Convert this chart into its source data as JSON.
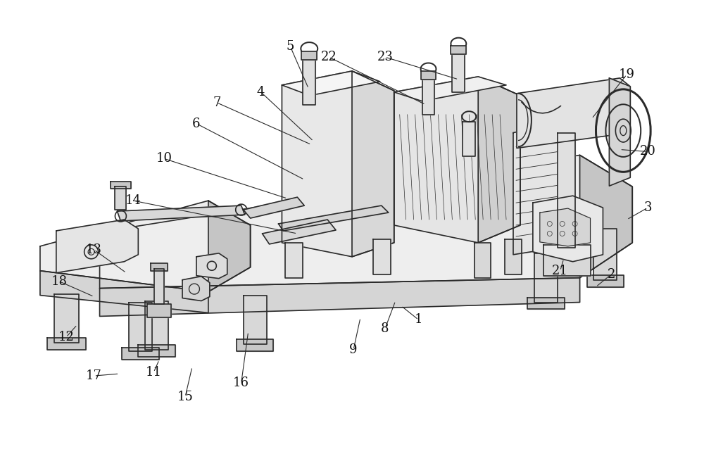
{
  "bg_color": "#ffffff",
  "line_color": "#2a2a2a",
  "line_width": 1.2,
  "fig_width": 10.0,
  "fig_height": 6.38,
  "label_font_size": 13,
  "label_positions": {
    "1": [
      595,
      455,
      570,
      435
    ],
    "2": [
      870,
      390,
      848,
      408
    ],
    "3": [
      922,
      295,
      892,
      312
    ],
    "4": [
      370,
      130,
      445,
      200
    ],
    "5": [
      412,
      65,
      438,
      125
    ],
    "6": [
      278,
      175,
      432,
      255
    ],
    "7": [
      307,
      145,
      442,
      205
    ],
    "8": [
      547,
      468,
      562,
      428
    ],
    "9": [
      502,
      498,
      512,
      452
    ],
    "10": [
      232,
      225,
      408,
      282
    ],
    "11": [
      217,
      530,
      225,
      512
    ],
    "12": [
      92,
      480,
      108,
      462
    ],
    "13": [
      132,
      355,
      178,
      388
    ],
    "14": [
      188,
      285,
      422,
      332
    ],
    "15": [
      262,
      565,
      272,
      522
    ],
    "16": [
      342,
      545,
      352,
      472
    ],
    "17": [
      132,
      535,
      168,
      532
    ],
    "18": [
      82,
      400,
      132,
      422
    ],
    "19": [
      892,
      105,
      842,
      168
    ],
    "20": [
      922,
      215,
      882,
      212
    ],
    "21": [
      797,
      385,
      802,
      368
    ],
    "22": [
      467,
      80,
      605,
      148
    ],
    "23": [
      547,
      80,
      652,
      112
    ]
  }
}
